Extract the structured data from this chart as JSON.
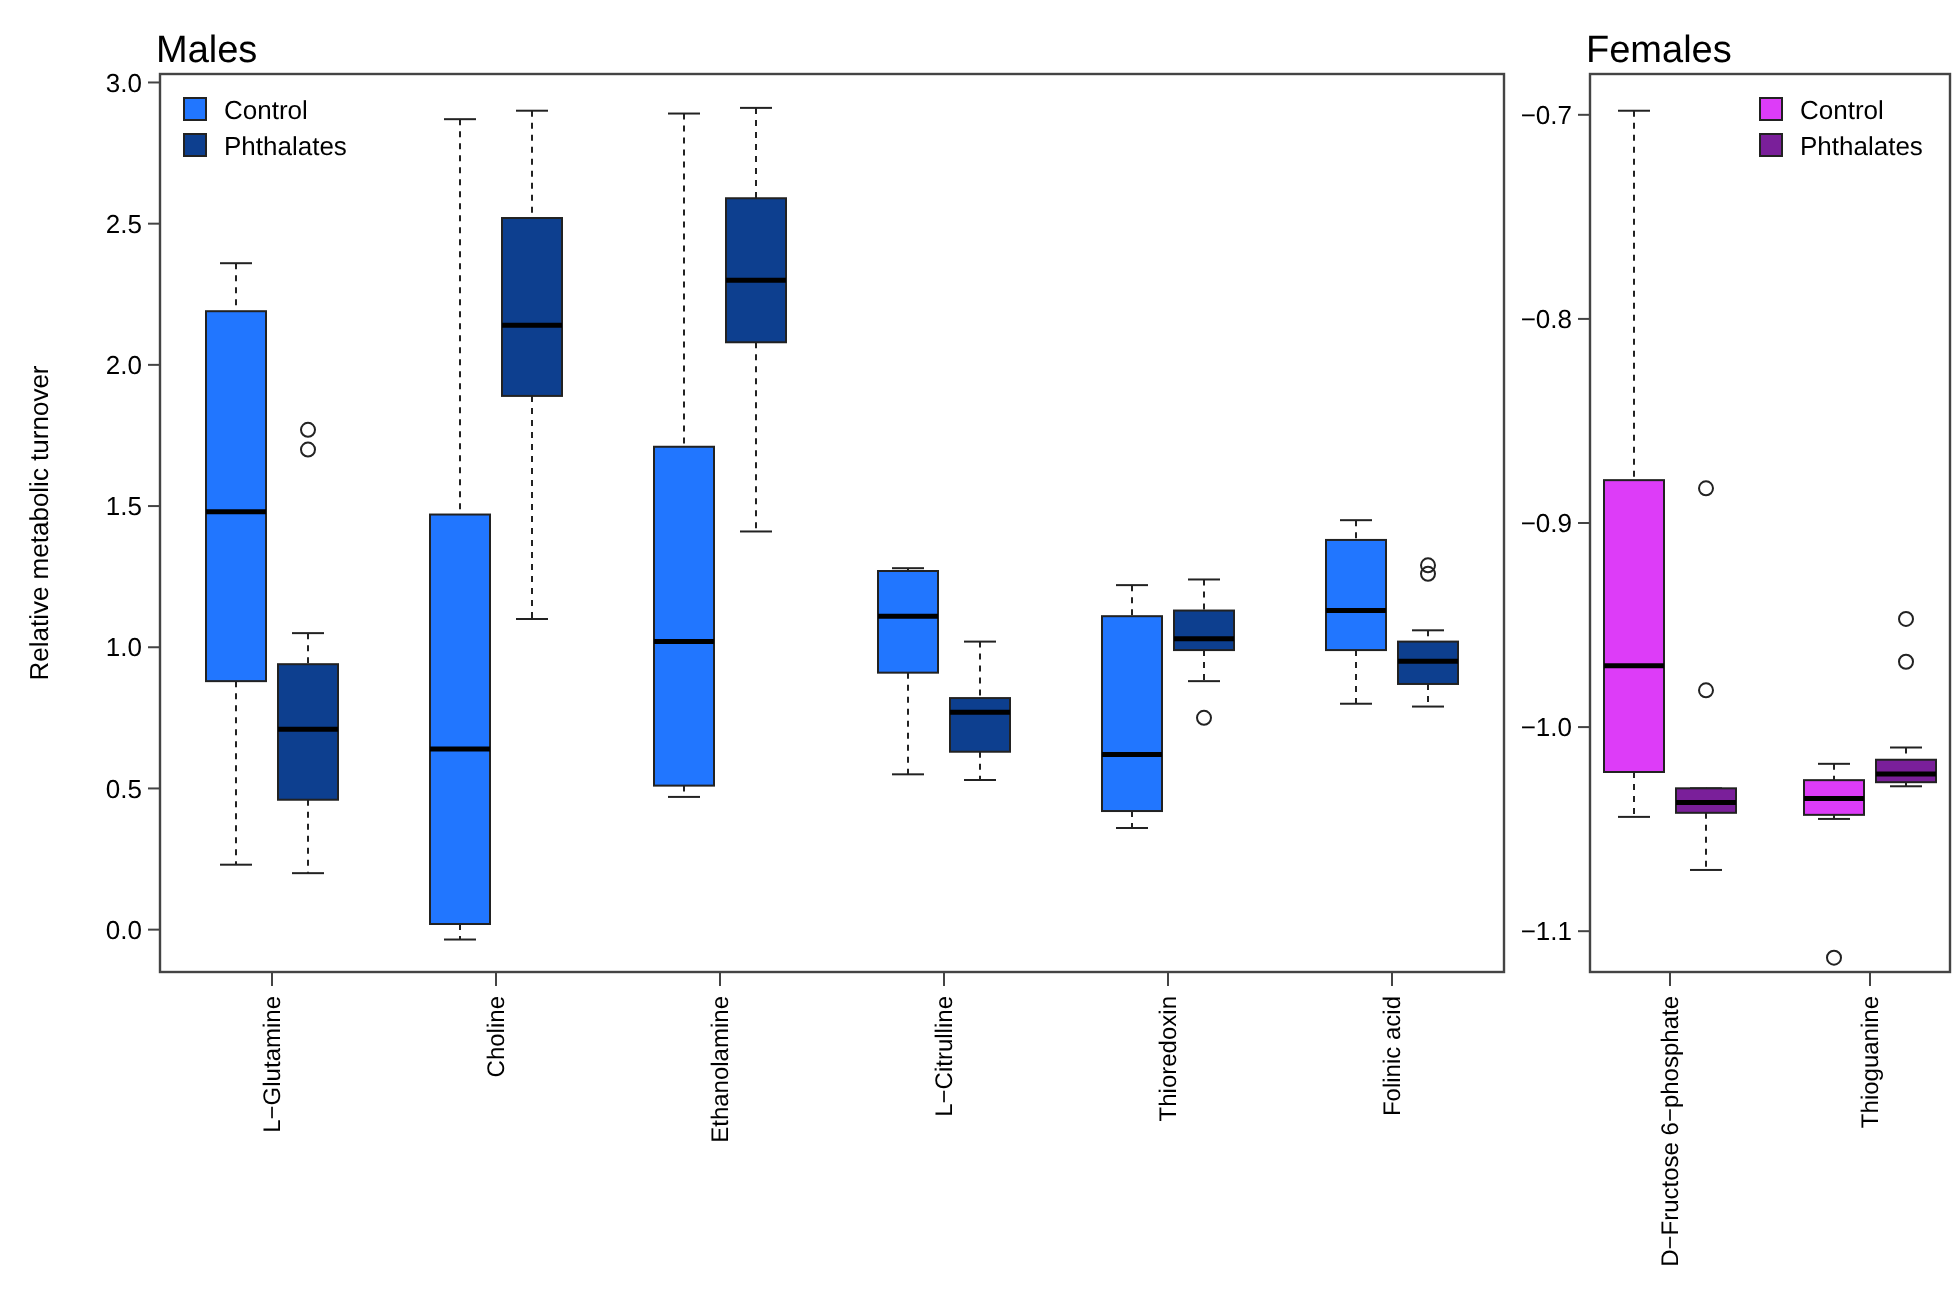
{
  "chart_data": [
    {
      "type": "box",
      "title": "Males",
      "ylabel": "Relative metabolic turnover",
      "categories": [
        "L−Glutamine",
        "Choline",
        "Ethanolamine",
        "L−Citrulline",
        "Thioredoxin",
        "Folinic acid"
      ],
      "ylim": [
        -0.15,
        3.03
      ],
      "yticks": [
        {
          "value": 0,
          "label": "0.0"
        },
        0.5,
        {
          "value": 1,
          "label": "1.0"
        },
        1.5,
        {
          "value": 2,
          "label": "2.0"
        },
        2.5,
        {
          "value": 3,
          "label": "3.0"
        }
      ],
      "legend": "top left",
      "grid": false,
      "line_style": "dashed",
      "series": [
        {
          "name": "Control",
          "color": "#2176ff",
          "boxes": [
            {
              "low": 0.23,
              "q1": 0.88,
              "median": 1.48,
              "q3": 2.19,
              "high": 2.36
            },
            {
              "low": -0.035,
              "q1": 0.02,
              "median": 0.64,
              "q3": 1.47,
              "high": 2.87
            },
            {
              "low": 0.47,
              "q1": 0.51,
              "median": 1.02,
              "q3": 1.71,
              "high": 2.89
            },
            {
              "low": 0.55,
              "q1": 0.91,
              "median": 1.11,
              "q3": 1.27,
              "high": 1.28
            },
            {
              "low": 0.36,
              "q1": 0.42,
              "median": 0.62,
              "q3": 1.11,
              "high": 1.22
            },
            {
              "low": 0.8,
              "q1": 0.99,
              "median": 1.13,
              "q3": 1.38,
              "high": 1.45
            }
          ]
        },
        {
          "name": "Phthalates",
          "color": "#0d3f8f",
          "boxes": [
            {
              "low": 0.2,
              "q1": 0.46,
              "median": 0.71,
              "q3": 0.94,
              "high": 1.05,
              "outliers": [
                1.77,
                1.7
              ]
            },
            {
              "low": 1.1,
              "q1": 1.89,
              "median": 2.14,
              "q3": 2.52,
              "high": 2.9
            },
            {
              "low": 1.41,
              "q1": 2.08,
              "median": 2.3,
              "q3": 2.59,
              "high": 2.91
            },
            {
              "low": 0.53,
              "q1": 0.63,
              "median": 0.77,
              "q3": 0.82,
              "high": 1.02
            },
            {
              "low": 0.88,
              "q1": 0.99,
              "median": 1.03,
              "q3": 1.13,
              "high": 1.24,
              "outliers": [
                0.75
              ]
            },
            {
              "low": 0.79,
              "q1": 0.87,
              "median": 0.95,
              "q3": 1.02,
              "high": 1.06,
              "outliers": [
                1.29,
                1.26
              ]
            }
          ]
        }
      ]
    },
    {
      "type": "box",
      "title": "Females",
      "categories": [
        "D−Fructose 6−phosphate",
        "Thioguanine"
      ],
      "ylim": [
        -1.12,
        -0.68
      ],
      "yticks": [
        {
          "value": -0.7,
          "label": "−0.7"
        },
        {
          "value": -0.8,
          "label": "−0.8"
        },
        {
          "value": -0.9,
          "label": "−0.9"
        },
        {
          "value": -1.0,
          "label": "−1.0"
        },
        {
          "value": -1.1,
          "label": "−1.1"
        }
      ],
      "legend": "top right",
      "grid": false,
      "line_style": "dashed",
      "series": [
        {
          "name": "Control",
          "color": "#dd3cf8",
          "boxes": [
            {
              "low": -1.044,
              "q1": -1.022,
              "median": -0.97,
              "q3": -0.879,
              "high": -0.698
            },
            {
              "low": -1.045,
              "q1": -1.043,
              "median": -1.035,
              "q3": -1.026,
              "high": -1.018,
              "outliers": [
                -1.113
              ]
            }
          ]
        },
        {
          "name": "Phthalates",
          "color": "#7a1f9a",
          "boxes": [
            {
              "low": -1.07,
              "q1": -1.042,
              "median": -1.037,
              "q3": -1.03,
              "high": -1.03,
              "outliers": [
                -0.883,
                -0.982
              ]
            },
            {
              "low": -1.029,
              "q1": -1.027,
              "median": -1.023,
              "q3": -1.016,
              "high": -1.01,
              "outliers": [
                -0.947,
                -0.968
              ]
            }
          ]
        }
      ]
    }
  ]
}
